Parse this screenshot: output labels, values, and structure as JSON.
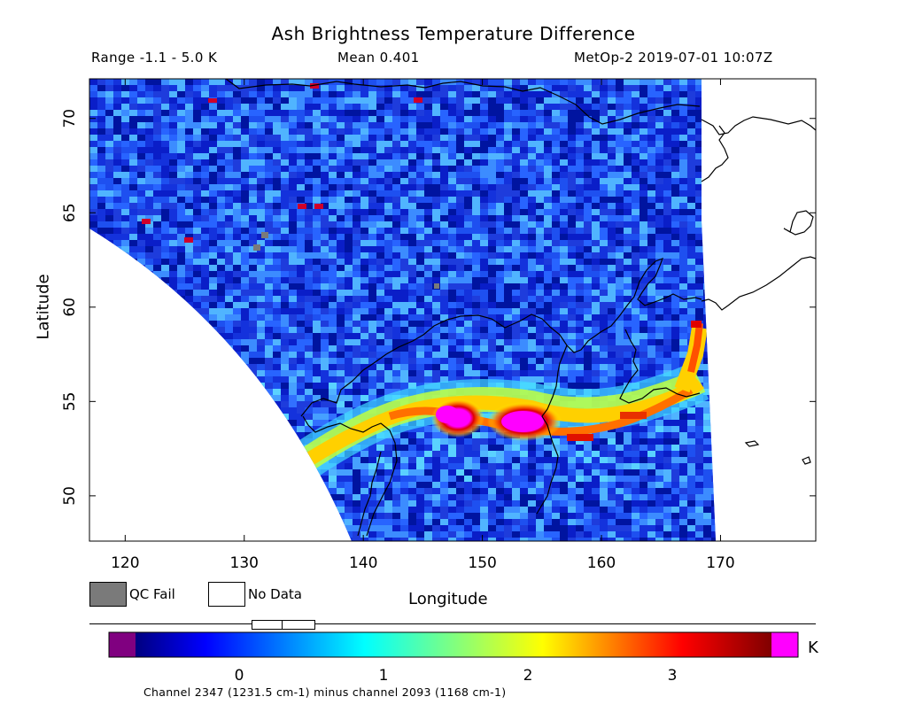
{
  "header": {
    "title": "Ash Brightness Temperature Difference",
    "range": "Range -1.1 - 5.0 K",
    "mean": "Mean 0.401",
    "satellite_time": "MetOp-2 2019-07-01 10:07Z"
  },
  "map": {
    "lon_min": 117,
    "lon_max": 178,
    "lat_min": 47.6,
    "lat_max": 72.1,
    "x_ticks": [
      120,
      130,
      140,
      150,
      160,
      170
    ],
    "y_ticks": [
      50,
      55,
      60,
      65,
      70
    ],
    "x_tick_labels": [
      "120",
      "130",
      "140",
      "150",
      "160",
      "170"
    ],
    "y_tick_labels": [
      "50",
      "55",
      "60",
      "65",
      "70"
    ],
    "x_label": "Longitude",
    "y_label": "Latitude",
    "ash_plume_peak_K": 5.0,
    "colors": {
      "no_data": "#ffffff",
      "qc_fail": "#7a7a7a",
      "background_field": "#1e3cdc"
    }
  },
  "legend": {
    "qc_fail": "QC Fail",
    "no_data": "No Data"
  },
  "colorbar": {
    "min": -1.1,
    "max": 5.0,
    "tick_values": [
      0,
      1,
      2,
      3
    ],
    "tick_labels": [
      "0",
      "1",
      "2",
      "3"
    ],
    "unit": "K",
    "under_color": "#800080",
    "over_color": "#ff00ff"
  },
  "footer": "Channel 2347 (1231.5 cm-1) minus channel 2093 (1168 cm-1)"
}
